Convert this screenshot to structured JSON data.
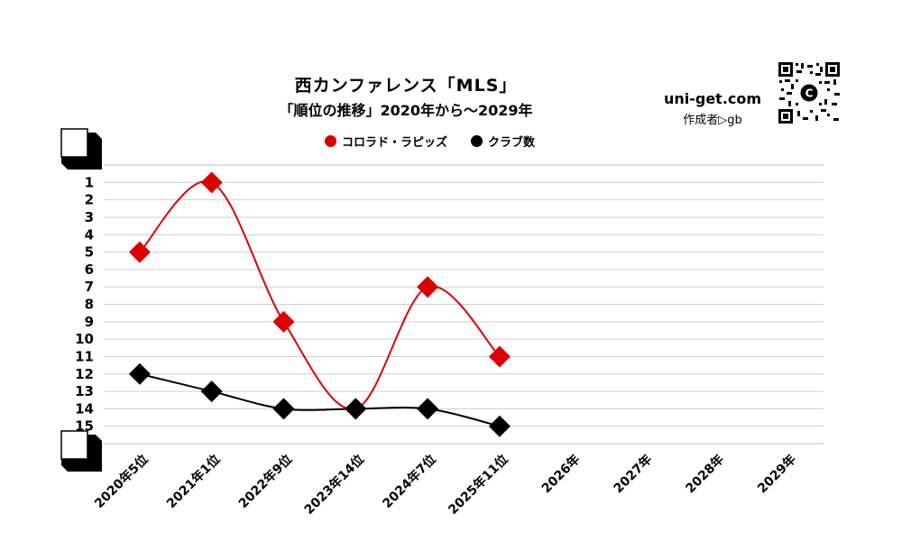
{
  "title": "西カンファレンス「MLS」",
  "subtitle": "「順位の推移」2020年から～2029年",
  "site": "uni-get.com",
  "author": "作成者▷gb",
  "chart_data": {
    "type": "line",
    "title": "西カンファレンス「MLS」",
    "subtitle": "「順位の推移」2020年から～2029年",
    "categories": [
      "2020年5位",
      "2021年1位",
      "2022年9位",
      "2023年14位",
      "2024年7位",
      "2025年11位",
      "2026年",
      "2027年",
      "2028年",
      "2029年"
    ],
    "y_ticks": [
      "1",
      "2",
      "3",
      "4",
      "5",
      "6",
      "7",
      "8",
      "9",
      "10",
      "11",
      "12",
      "13",
      "14",
      "15"
    ],
    "ylim": [
      0,
      16
    ],
    "y_inverted": true,
    "grid": true,
    "legend_position": "top",
    "series": [
      {
        "name": "コロラド・ラピッズ",
        "color": "#dd0000",
        "marker": "diamond",
        "values": [
          5,
          1,
          9,
          14,
          7,
          11,
          null,
          null,
          null,
          null
        ]
      },
      {
        "name": "クラブ数",
        "color": "#000000",
        "marker": "diamond",
        "values": [
          12,
          13,
          14,
          14,
          14,
          15,
          null,
          null,
          null,
          null
        ]
      }
    ]
  }
}
